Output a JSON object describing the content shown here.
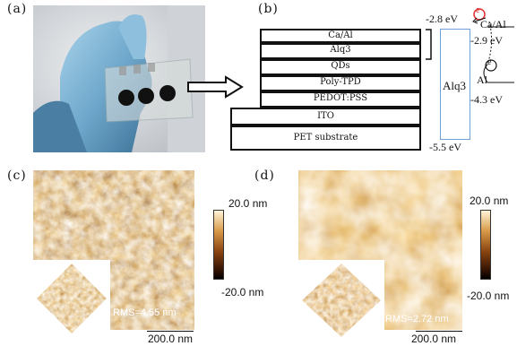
{
  "panels": {
    "a": {
      "label": "(a)"
    },
    "b": {
      "label": "(b)",
      "layers": [
        "Ca/Al",
        "Alq3",
        "QDs",
        "Poly-TPD",
        "PEDOT:PSS",
        "ITO",
        "PET substrate"
      ],
      "band_label": "Alq3",
      "energy_levels": {
        "top": "-2.8 eV",
        "ca_al": "Ca/Al",
        "ca_al_level": "-2.9 eV",
        "al": "Al",
        "al_level": "-4.3 eV",
        "bottom": "-5.5 eV"
      },
      "electron_symbol": "e"
    },
    "c": {
      "label": "(c)",
      "colorbar_max": "20.0 nm",
      "colorbar_min": "-20.0 nm",
      "rms": "RMS=4.55 nm",
      "scale": "200.0 nm"
    },
    "d": {
      "label": "(d)",
      "colorbar_max": "20.0 nm",
      "colorbar_min": "-20.0 nm",
      "rms": "RMS=2.72 nm",
      "scale": "200.0 nm"
    }
  },
  "colors": {
    "afm_dark": "#2a0e02",
    "afm_mid": "#8a4410",
    "afm_light": "#d89a48",
    "afm_bright": "#fff4d8",
    "band_blue": "#6f9fd6",
    "electron_red": "#e03030"
  }
}
